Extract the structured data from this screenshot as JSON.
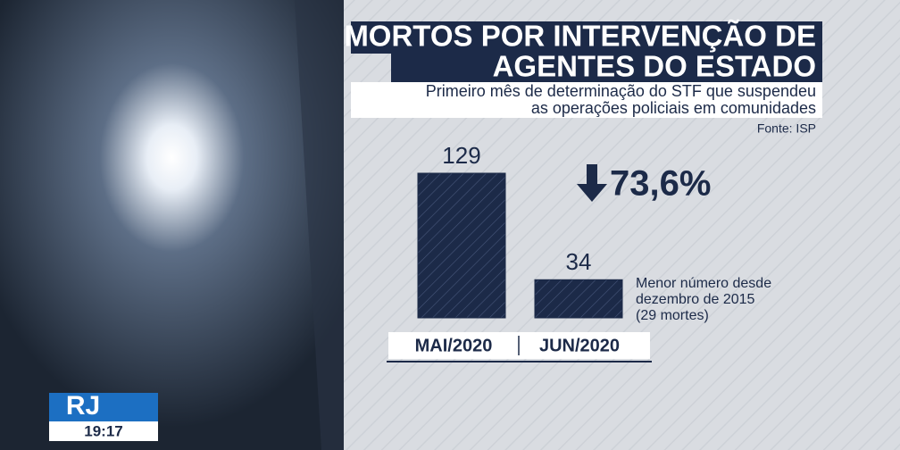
{
  "chart_data": {
    "type": "bar",
    "title_lines": [
      "MORTOS POR INTERVENÇÃO DE",
      "AGENTES DO ESTADO"
    ],
    "subtitle_lines": [
      "Primeiro mês de determinação do STF que suspendeu",
      "as operações policiais em comunidades"
    ],
    "source": "Fonte: ISP",
    "categories": [
      "MAI/2020",
      "JUN/2020"
    ],
    "values": [
      129,
      34
    ],
    "color": "#1c2a48",
    "ylim": [
      0,
      129
    ],
    "change_label": "73,6%",
    "note_lines": [
      "Menor número desde",
      "dezembro de 2015",
      "(29 mortes)"
    ]
  },
  "broadcast": {
    "logo": "RJ",
    "time": "19:17"
  }
}
